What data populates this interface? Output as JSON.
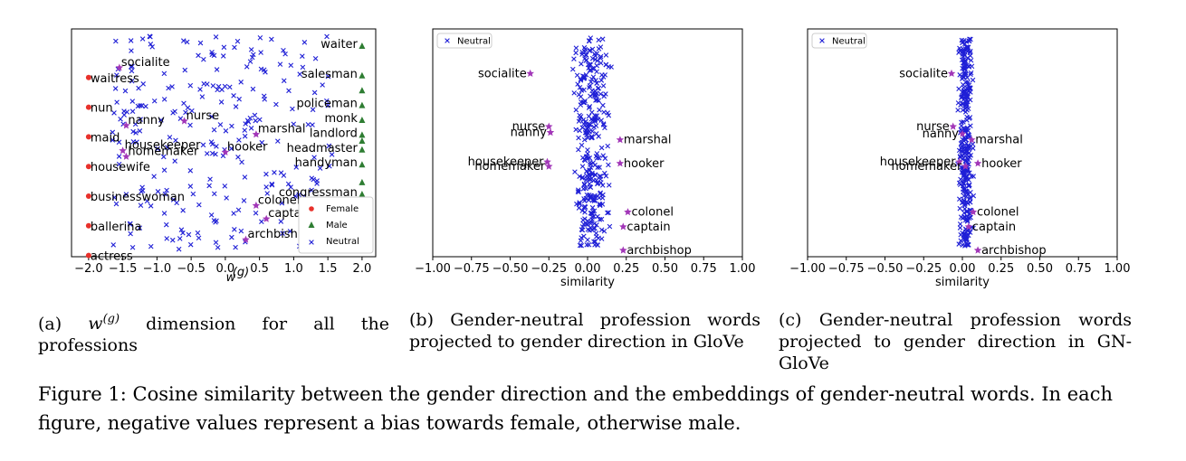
{
  "figure_caption": "Figure 1: Cosine similarity between the gender direction and the embeddings of gender-neutral words. In each figure, negative values represent a bias towards female, otherwise male.",
  "colors": {
    "female": "#e8312b",
    "male": "#2e7d32",
    "neutral": "#1f1fd6",
    "highlight": "#a237b8"
  },
  "chart_data": [
    {
      "type": "scatter",
      "caption_prefix": "(a) ",
      "caption_math": "w(g)",
      "caption_suffix": " dimension for all the professions",
      "xlabel": "w(g)",
      "xlim": [
        -2.25,
        2.2
      ],
      "xticks": [
        "−2.0",
        "−1.5",
        "−1.0",
        "−0.5",
        "0.0",
        "0.5",
        "1.0",
        "1.5",
        "2.0"
      ],
      "xtick_values": [
        -2.0,
        -1.5,
        -1.0,
        -0.5,
        0.0,
        0.5,
        1.0,
        1.5,
        2.0
      ],
      "legend": {
        "position": "lower-right",
        "entries": [
          "Female",
          "Male",
          "Neutral"
        ]
      },
      "female_points": [
        {
          "label": "waitress",
          "x": -2.0,
          "rank": 1
        },
        {
          "label": "nun",
          "x": -2.0,
          "rank": 2
        },
        {
          "label": "maid",
          "x": -2.0,
          "rank": 3
        },
        {
          "label": "housewife",
          "x": -2.0,
          "rank": 4
        },
        {
          "label": "businesswoman",
          "x": -2.0,
          "rank": 5
        },
        {
          "label": "ballerina",
          "x": -2.0,
          "rank": 6
        },
        {
          "label": "actress",
          "x": -2.0,
          "rank": 7
        }
      ],
      "male_points": [
        {
          "label": "waiter",
          "x": 2.0,
          "rank": 0
        },
        {
          "label": "salesman",
          "x": 2.0,
          "rank": 1
        },
        {
          "label": "policeman",
          "x": 2.0,
          "rank": 2
        },
        {
          "label": "monk",
          "x": 2.0,
          "rank": 2.5
        },
        {
          "label": "landlord",
          "x": 2.0,
          "rank": 3
        },
        {
          "label": "headmaster",
          "x": 2.0,
          "rank": 3.5
        },
        {
          "label": "handyman",
          "x": 2.0,
          "rank": 4
        },
        {
          "label": "congressman",
          "x": 2.0,
          "rank": 5
        }
      ],
      "highlight_points": [
        {
          "label": "socialite",
          "x": -1.55,
          "rank": 0.85
        },
        {
          "label": "nanny",
          "x": -1.45,
          "rank": 2.8
        },
        {
          "label": "nurse",
          "x": -0.6,
          "rank": 2.65
        },
        {
          "label": "housekeeper",
          "x": -1.5,
          "rank": 3.65
        },
        {
          "label": "homemaker",
          "x": -1.45,
          "rank": 3.85
        },
        {
          "label": "hooker",
          "x": 0.0,
          "rank": 3.7
        },
        {
          "label": "marshal",
          "x": 0.45,
          "rank": 3.1
        },
        {
          "label": "colonel",
          "x": 0.45,
          "rank": 5.5
        },
        {
          "label": "captain",
          "x": 0.6,
          "rank": 5.95
        },
        {
          "label": "archbishop",
          "x": 0.3,
          "rank": 6.65
        }
      ]
    },
    {
      "type": "scatter",
      "caption": "(b) Gender-neutral profession words projected to gender direction in GloVe",
      "xlabel": "similarity",
      "xlim": [
        -1.0,
        1.0
      ],
      "xticks": [
        "−1.00",
        "−0.75",
        "−0.50",
        "−0.25",
        "0.00",
        "0.25",
        "0.50",
        "0.75",
        "1.00"
      ],
      "xtick_values": [
        -1.0,
        -0.75,
        -0.5,
        -0.25,
        0.0,
        0.25,
        0.5,
        0.75,
        1.0
      ],
      "legend": {
        "position": "upper-left",
        "entries": [
          "Neutral"
        ]
      },
      "neutral_center": 0.02,
      "neutral_spread": 0.13,
      "highlight_points": [
        {
          "label": "socialite",
          "x": -0.37,
          "rank": 0.9
        },
        {
          "label": "nurse",
          "x": -0.25,
          "rank": 2.7
        },
        {
          "label": "nanny",
          "x": -0.24,
          "rank": 2.9
        },
        {
          "label": "housekeeper",
          "x": -0.26,
          "rank": 3.9
        },
        {
          "label": "homemaker",
          "x": -0.25,
          "rank": 4.05
        },
        {
          "label": "marshal",
          "x": 0.21,
          "rank": 3.15
        },
        {
          "label": "hooker",
          "x": 0.21,
          "rank": 3.95
        },
        {
          "label": "colonel",
          "x": 0.26,
          "rank": 5.6
        },
        {
          "label": "captain",
          "x": 0.23,
          "rank": 6.1
        },
        {
          "label": "archbishop",
          "x": 0.23,
          "rank": 6.9
        }
      ]
    },
    {
      "type": "scatter",
      "caption": "(c) Gender-neutral profession words projected to gender direction in GN-GloVe",
      "xlabel": "similarity",
      "xlim": [
        -1.0,
        1.0
      ],
      "xticks": [
        "−1.00",
        "−0.75",
        "−0.50",
        "−0.25",
        "0.00",
        "0.25",
        "0.50",
        "0.75",
        "1.00"
      ],
      "xtick_values": [
        -1.0,
        -0.75,
        -0.5,
        -0.25,
        0.0,
        0.25,
        0.5,
        0.75,
        1.0
      ],
      "legend": {
        "position": "upper-left",
        "entries": [
          "Neutral"
        ]
      },
      "neutral_center": 0.02,
      "neutral_spread": 0.05,
      "highlight_points": [
        {
          "label": "socialite",
          "x": -0.07,
          "rank": 0.9
        },
        {
          "label": "nurse",
          "x": -0.06,
          "rank": 2.7
        },
        {
          "label": "nanny",
          "x": 0.0,
          "rank": 2.95
        },
        {
          "label": "marshal",
          "x": 0.06,
          "rank": 3.15
        },
        {
          "label": "housekeeper",
          "x": -0.02,
          "rank": 3.9
        },
        {
          "label": "homemaker",
          "x": 0.02,
          "rank": 4.05
        },
        {
          "label": "hooker",
          "x": 0.1,
          "rank": 3.95
        },
        {
          "label": "colonel",
          "x": 0.07,
          "rank": 5.6
        },
        {
          "label": "captain",
          "x": 0.04,
          "rank": 6.1
        },
        {
          "label": "archbishop",
          "x": 0.1,
          "rank": 6.9
        }
      ]
    }
  ]
}
